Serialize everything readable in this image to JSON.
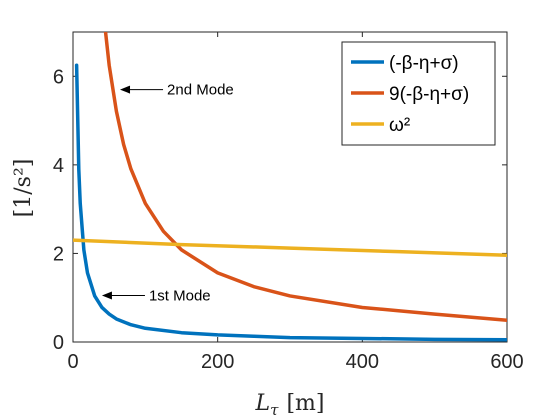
{
  "chart_data": {
    "type": "line",
    "xlabel_main": "L",
    "xlabel_sub": "τ",
    "xlabel_unit": "[m]",
    "ylabel": "[1/s²]",
    "xlim": [
      0,
      600
    ],
    "ylim": [
      0,
      7
    ],
    "xticks": [
      0,
      200,
      400,
      600
    ],
    "yticks": [
      0,
      2,
      4,
      6
    ],
    "grid": false,
    "legend_position": "top-right",
    "series": [
      {
        "name": "(-β-η+σ)",
        "color": "#0072BD",
        "x": [
          5,
          8,
          10,
          15,
          20,
          30,
          40,
          50,
          60,
          80,
          100,
          150,
          200,
          250,
          300,
          400,
          500,
          600
        ],
        "y": [
          6.25,
          3.9,
          3.13,
          2.08,
          1.56,
          1.04,
          0.78,
          0.63,
          0.52,
          0.39,
          0.31,
          0.21,
          0.16,
          0.13,
          0.1,
          0.08,
          0.06,
          0.05
        ]
      },
      {
        "name": "9(-β-η+σ)",
        "color": "#D95319",
        "x": [
          45,
          50,
          60,
          70,
          80,
          100,
          125,
          150,
          200,
          250,
          300,
          400,
          500,
          600
        ],
        "y": [
          7.0,
          6.25,
          5.21,
          4.46,
          3.91,
          3.13,
          2.5,
          2.08,
          1.56,
          1.25,
          1.04,
          0.78,
          0.63,
          0.49
        ]
      },
      {
        "name": "ω²",
        "color": "#EDB120",
        "x": [
          0,
          150,
          300,
          450,
          600
        ],
        "y": [
          2.3,
          2.2,
          2.12,
          2.04,
          1.96
        ]
      }
    ],
    "annotations": [
      {
        "text": "2nd Mode",
        "x": 130,
        "y": 5.7,
        "arrow_to": [
          65,
          5.7
        ]
      },
      {
        "text": "1st Mode",
        "x": 105,
        "y": 1.05,
        "arrow_to": [
          40,
          1.05
        ]
      }
    ]
  }
}
